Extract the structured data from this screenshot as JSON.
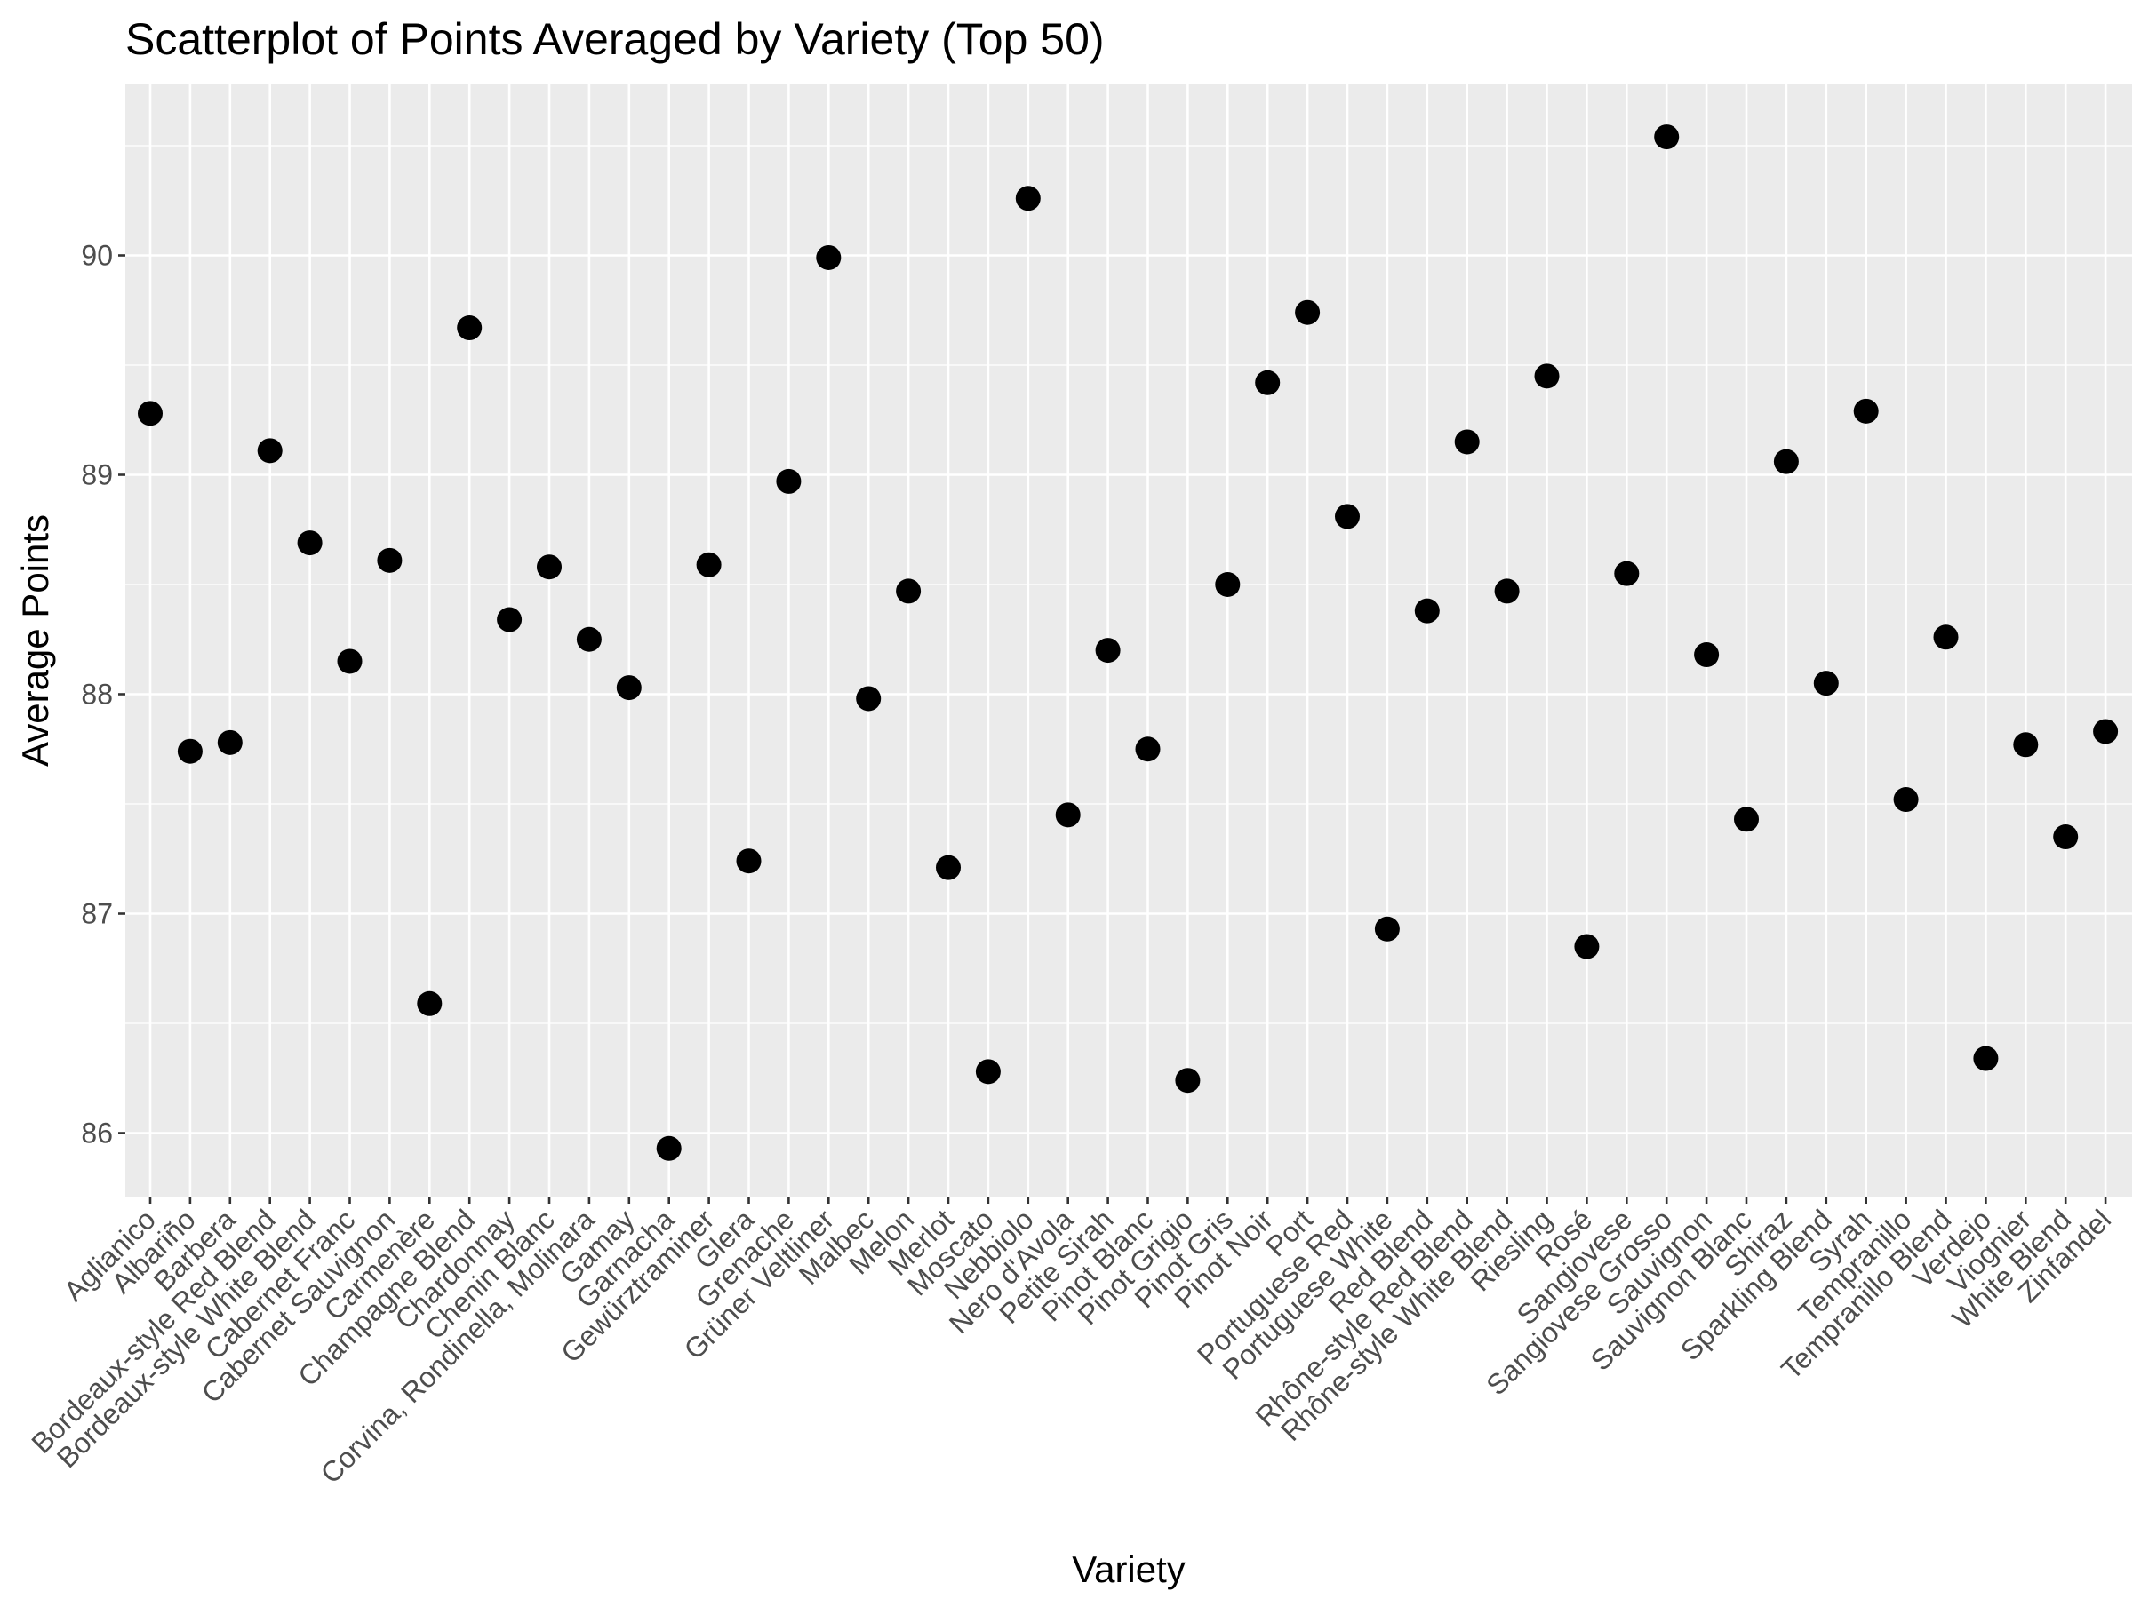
{
  "chart_data": {
    "type": "scatter",
    "title": "Scatterplot of Points Averaged by Variety (Top 50)",
    "xlabel": "Variety",
    "ylabel": "Average Points",
    "ylim": [
      85.7,
      90.8
    ],
    "yticks": [
      86,
      87,
      88,
      89,
      90
    ],
    "grid": true,
    "legend": "none",
    "colors": {
      "panel": "#ebebeb",
      "grid": "#ffffff",
      "point": "#000000",
      "tick_text": "#4d4d4d",
      "tick_mark": "#333333"
    },
    "categories": [
      "Aglianico",
      "Albariño",
      "Barbera",
      "Bordeaux-style Red Blend",
      "Bordeaux-style White Blend",
      "Cabernet Franc",
      "Cabernet Sauvignon",
      "Carmenère",
      "Champagne Blend",
      "Chardonnay",
      "Chenin Blanc",
      "Corvina, Rondinella, Molinara",
      "Gamay",
      "Garnacha",
      "Gewürztraminer",
      "Glera",
      "Grenache",
      "Grüner Veltliner",
      "Malbec",
      "Melon",
      "Merlot",
      "Moscato",
      "Nebbiolo",
      "Nero d'Avola",
      "Petite Sirah",
      "Pinot Blanc",
      "Pinot Grigio",
      "Pinot Gris",
      "Pinot Noir",
      "Port",
      "Portuguese Red",
      "Portuguese White",
      "Red Blend",
      "Rhône-style Red Blend",
      "Rhône-style White Blend",
      "Riesling",
      "Rosé",
      "Sangiovese",
      "Sangiovese Grosso",
      "Sauvignon",
      "Sauvignon Blanc",
      "Shiraz",
      "Sparkling Blend",
      "Syrah",
      "Tempranillo",
      "Tempranillo Blend",
      "Verdejo",
      "Viognier",
      "White Blend",
      "Zinfandel"
    ],
    "values": [
      89.28,
      87.74,
      87.78,
      89.11,
      88.69,
      88.15,
      88.61,
      86.59,
      89.67,
      88.34,
      88.58,
      88.25,
      88.03,
      85.93,
      88.59,
      87.24,
      88.97,
      89.99,
      87.98,
      88.47,
      87.21,
      86.28,
      90.26,
      87.45,
      88.2,
      87.75,
      86.24,
      88.5,
      89.42,
      89.74,
      88.81,
      86.93,
      88.38,
      89.15,
      88.47,
      89.45,
      86.85,
      88.55,
      90.54,
      88.18,
      87.43,
      89.06,
      88.05,
      89.29,
      87.52,
      88.26,
      86.34,
      87.77,
      87.35,
      87.83
    ]
  }
}
